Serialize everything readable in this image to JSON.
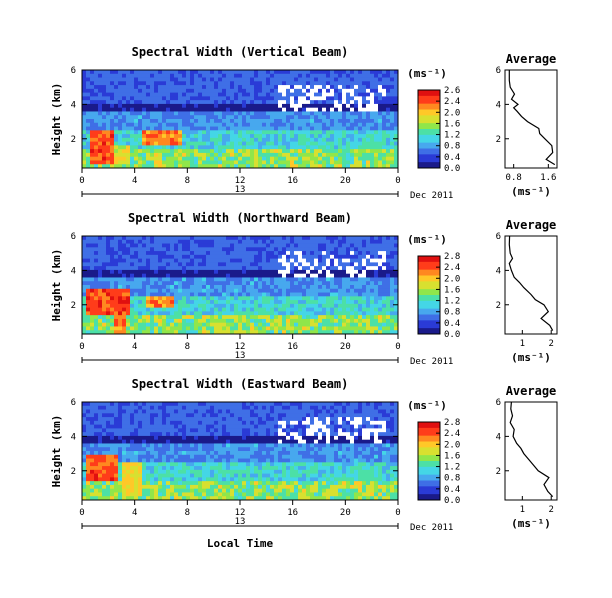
{
  "colors": {
    "scale": [
      "#1a1a8a",
      "#2a3bd6",
      "#3f6fe6",
      "#47a8ee",
      "#44d6e6",
      "#4ce0a6",
      "#90e64a",
      "#d8e030",
      "#ffc828",
      "#ff8820",
      "#ff3c1a",
      "#e01010"
    ],
    "missing": "#ffffff",
    "line": "#000000"
  },
  "footer": {
    "xlabel": "Local Time"
  },
  "chart_data": [
    {
      "type": "heatmap",
      "title": "Spectral Width (Vertical Beam)",
      "ylabel": "Height (km)",
      "yticks": [
        "6",
        "4",
        "2"
      ],
      "ylim": [
        0.3,
        6
      ],
      "xticks": [
        "0",
        "4",
        "8",
        "12",
        "16",
        "20",
        "0"
      ],
      "xlim": [
        0,
        24
      ],
      "day": "13",
      "date_label": "Dec 2011",
      "colorbar": {
        "unit": "(ms⁻¹)",
        "ticks": [
          "2.6",
          "2.4",
          "2.0",
          "1.6",
          "1.2",
          "0.8",
          "0.4",
          "0.0"
        ],
        "range": [
          0,
          2.8
        ]
      },
      "hot_regions": [
        {
          "t": [
            0.5,
            2.5
          ],
          "h": [
            0.5,
            2.4
          ],
          "v": 2.6
        },
        {
          "t": [
            2.5,
            3.6
          ],
          "h": [
            0.5,
            1.6
          ],
          "v": 2.0
        },
        {
          "t": [
            4.5,
            7.5
          ],
          "h": [
            1.6,
            2.4
          ],
          "v": 2.5
        },
        {
          "t": [
            5.5,
            6.2
          ],
          "h": [
            0.4,
            1.2
          ],
          "v": 2.2
        }
      ],
      "avg": {
        "title": "Average",
        "xticks": [
          "0.8",
          "1.6"
        ],
        "xlim": [
          0.6,
          1.8
        ],
        "xlabel": "(ms⁻¹)",
        "yticks": [
          "6",
          "4",
          "2"
        ],
        "ylim": [
          0.3,
          6
        ],
        "profile": [
          [
            0.5,
            1.75
          ],
          [
            0.8,
            1.55
          ],
          [
            1.2,
            1.7
          ],
          [
            1.6,
            1.68
          ],
          [
            2.0,
            1.52
          ],
          [
            2.3,
            1.4
          ],
          [
            2.6,
            1.38
          ],
          [
            3.0,
            1.12
          ],
          [
            3.3,
            0.98
          ],
          [
            3.6,
            0.88
          ],
          [
            3.8,
            0.8
          ],
          [
            4.0,
            0.9
          ],
          [
            4.3,
            0.75
          ],
          [
            4.6,
            0.82
          ],
          [
            5.0,
            0.72
          ],
          [
            5.4,
            0.7
          ],
          [
            6.0,
            0.7
          ]
        ]
      }
    },
    {
      "type": "heatmap",
      "title": "Spectral Width (Northward Beam)",
      "ylabel": "Height (km)",
      "yticks": [
        "6",
        "4",
        "2"
      ],
      "ylim": [
        0.3,
        6
      ],
      "xticks": [
        "0",
        "4",
        "8",
        "12",
        "16",
        "20",
        "0"
      ],
      "xlim": [
        0,
        24
      ],
      "day": "13",
      "date_label": "Dec 2011",
      "colorbar": {
        "unit": "(ms⁻¹)",
        "ticks": [
          "2.8",
          "2.4",
          "2.0",
          "1.6",
          "1.2",
          "0.8",
          "0.4",
          "0.0"
        ],
        "range": [
          0,
          2.8
        ]
      },
      "hot_regions": [
        {
          "t": [
            0.3,
            3.5
          ],
          "h": [
            1.4,
            3.0
          ],
          "v": 2.7
        },
        {
          "t": [
            2.5,
            3.4
          ],
          "h": [
            0.4,
            1.4
          ],
          "v": 2.5
        },
        {
          "t": [
            5.0,
            7.0
          ],
          "h": [
            1.8,
            2.6
          ],
          "v": 2.4
        }
      ],
      "avg": {
        "title": "Average",
        "xticks": [
          "1",
          "2"
        ],
        "xlim": [
          0.4,
          2.2
        ],
        "xlabel": "(ms⁻¹)",
        "yticks": [
          "6",
          "4",
          "2"
        ],
        "ylim": [
          0.3,
          6
        ],
        "profile": [
          [
            0.5,
            2.05
          ],
          [
            0.8,
            1.95
          ],
          [
            1.2,
            1.65
          ],
          [
            1.6,
            1.9
          ],
          [
            2.0,
            1.75
          ],
          [
            2.3,
            1.45
          ],
          [
            2.6,
            1.3
          ],
          [
            3.0,
            1.05
          ],
          [
            3.3,
            0.9
          ],
          [
            3.6,
            0.72
          ],
          [
            4.0,
            0.62
          ],
          [
            4.4,
            0.55
          ],
          [
            4.7,
            0.66
          ],
          [
            5.0,
            0.58
          ],
          [
            5.5,
            0.55
          ],
          [
            6.0,
            0.56
          ]
        ]
      }
    },
    {
      "type": "heatmap",
      "title": "Spectral Width (Eastward Beam)",
      "ylabel": "Height (km)",
      "yticks": [
        "6",
        "4",
        "2"
      ],
      "ylim": [
        0.3,
        6
      ],
      "xticks": [
        "0",
        "4",
        "8",
        "12",
        "16",
        "20",
        "0"
      ],
      "xlim": [
        0,
        24
      ],
      "day": "13",
      "date_label": "Dec 2011",
      "colorbar": {
        "unit": "(ms⁻¹)",
        "ticks": [
          "2.8",
          "2.4",
          "2.0",
          "1.6",
          "1.2",
          "0.8",
          "0.4",
          "0.0"
        ],
        "range": [
          0,
          2.8
        ]
      },
      "hot_regions": [
        {
          "t": [
            0.3,
            2.8
          ],
          "h": [
            1.4,
            3.0
          ],
          "v": 2.6
        },
        {
          "t": [
            3.0,
            4.5
          ],
          "h": [
            0.5,
            2.4
          ],
          "v": 2.1
        }
      ],
      "avg": {
        "title": "Average",
        "xticks": [
          "1",
          "2"
        ],
        "xlim": [
          0.4,
          2.2
        ],
        "xlabel": "(ms⁻¹)",
        "yticks": [
          "6",
          "4",
          "2"
        ],
        "ylim": [
          0.3,
          6
        ],
        "profile": [
          [
            0.5,
            2.05
          ],
          [
            0.8,
            1.88
          ],
          [
            1.2,
            1.75
          ],
          [
            1.6,
            1.92
          ],
          [
            2.0,
            1.55
          ],
          [
            2.3,
            1.4
          ],
          [
            2.6,
            1.25
          ],
          [
            3.0,
            1.05
          ],
          [
            3.3,
            0.95
          ],
          [
            3.6,
            0.8
          ],
          [
            4.0,
            0.68
          ],
          [
            4.4,
            0.72
          ],
          [
            4.8,
            0.58
          ],
          [
            5.2,
            0.66
          ],
          [
            5.6,
            0.6
          ],
          [
            6.0,
            0.62
          ]
        ]
      }
    }
  ]
}
